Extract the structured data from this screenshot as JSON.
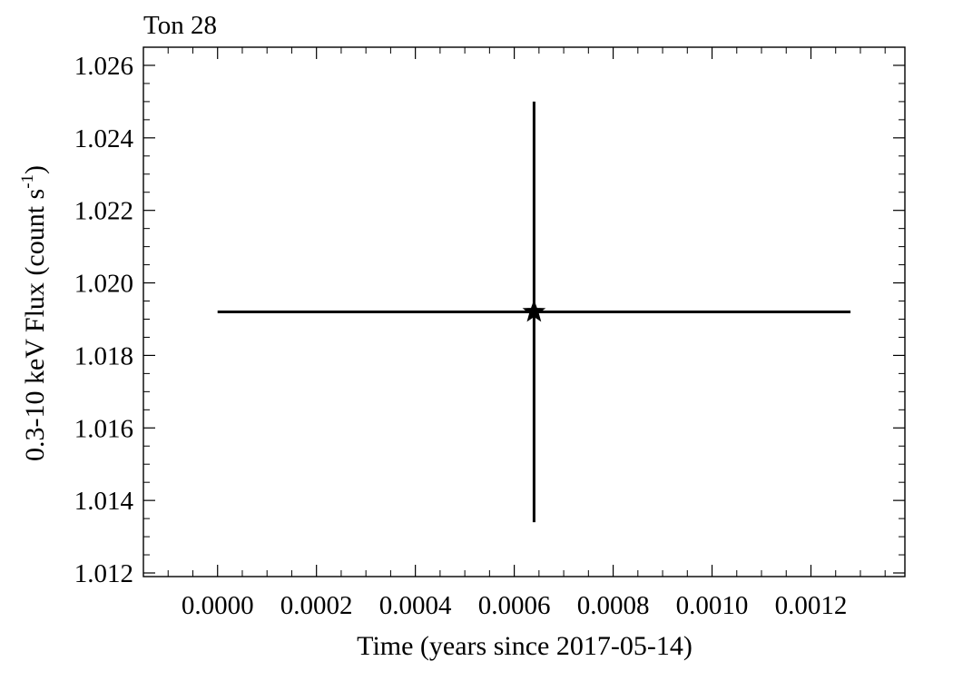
{
  "chart_data": {
    "type": "scatter",
    "title": "Ton 28",
    "xlabel": "Time (years since 2017-05-14)",
    "ylabel_main": "0.3-10 keV Flux (count s",
    "ylabel_sup": "-1",
    "ylabel_close": ")",
    "xlim": [
      -0.00015,
      0.00139
    ],
    "ylim": [
      1.0119,
      1.0265
    ],
    "x_ticks": [
      {
        "value": 0.0,
        "label": "0.0000"
      },
      {
        "value": 0.0002,
        "label": "0.0002"
      },
      {
        "value": 0.0004,
        "label": "0.0004"
      },
      {
        "value": 0.0006,
        "label": "0.0006"
      },
      {
        "value": 0.0008,
        "label": "0.0008"
      },
      {
        "value": 0.001,
        "label": "0.0010"
      },
      {
        "value": 0.0012,
        "label": "0.0012"
      }
    ],
    "y_ticks": [
      {
        "value": 1.012,
        "label": "1.012"
      },
      {
        "value": 1.014,
        "label": "1.014"
      },
      {
        "value": 1.016,
        "label": "1.016"
      },
      {
        "value": 1.018,
        "label": "1.018"
      },
      {
        "value": 1.02,
        "label": "1.020"
      },
      {
        "value": 1.022,
        "label": "1.022"
      },
      {
        "value": 1.024,
        "label": "1.024"
      },
      {
        "value": 1.026,
        "label": "1.026"
      }
    ],
    "x_minor_step": 5e-05,
    "y_minor_step": 0.0005,
    "marker": "star",
    "points": [
      {
        "x": 0.00064,
        "y": 1.0192,
        "x_err_low": 0.00064,
        "x_err_high": 0.00064,
        "y_err_low": 0.0058,
        "y_err_high": 0.0058
      }
    ],
    "grid": false
  }
}
